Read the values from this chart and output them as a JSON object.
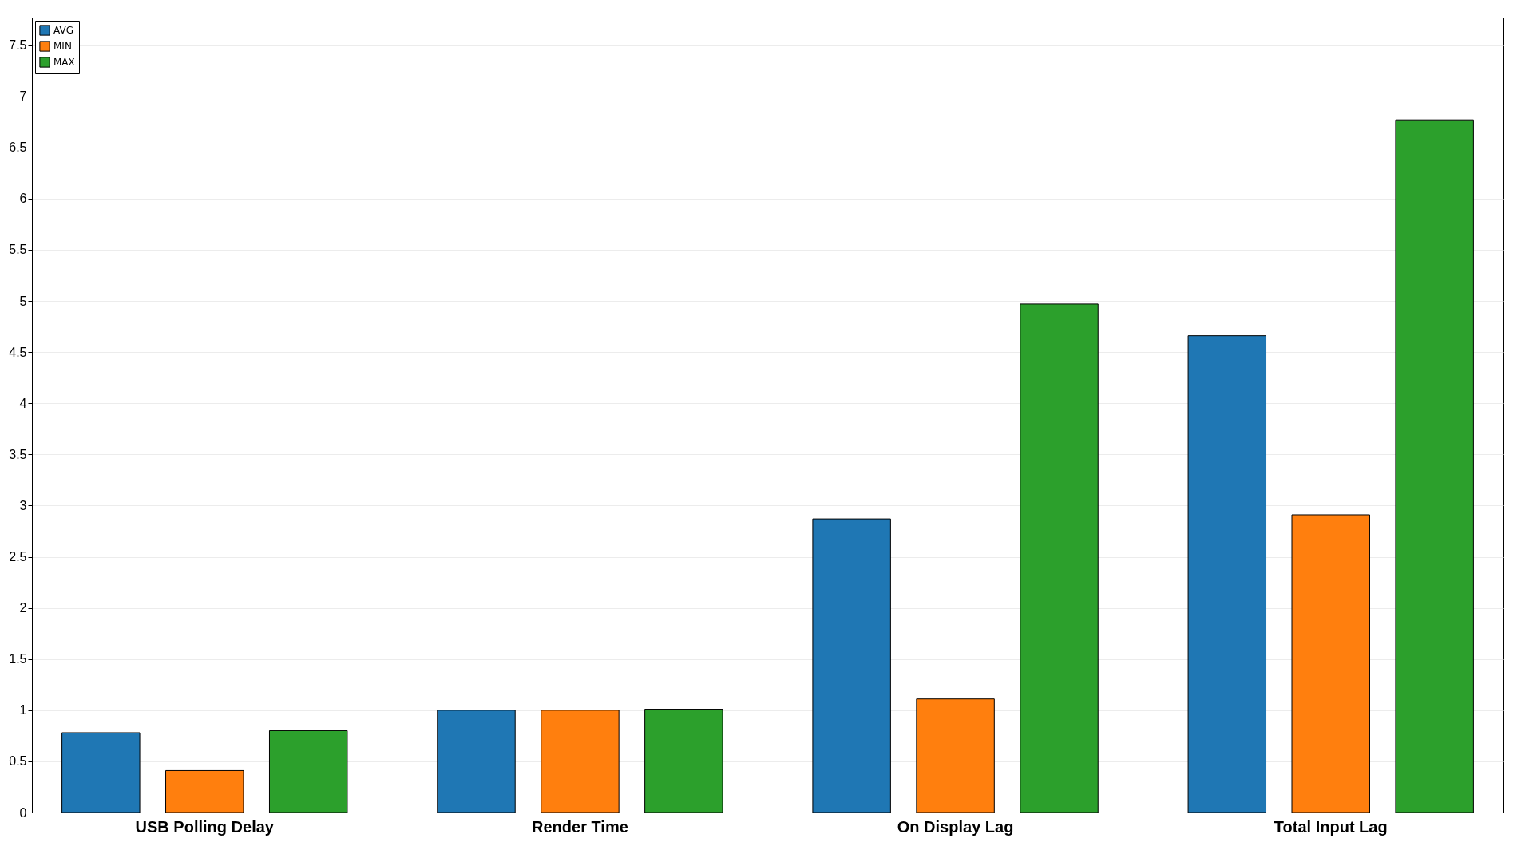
{
  "chart_data": {
    "type": "bar",
    "categories": [
      "USB Polling Delay",
      "Render Time",
      "On Display Lag",
      "Total Input Lag"
    ],
    "series": [
      {
        "name": "AVG",
        "color": "#1f77b4",
        "values": [
          0.78,
          1.0,
          2.87,
          4.66
        ]
      },
      {
        "name": "MIN",
        "color": "#ff7f0e",
        "values": [
          0.41,
          1.0,
          1.11,
          2.91
        ]
      },
      {
        "name": "MAX",
        "color": "#2ca02c",
        "values": [
          0.8,
          1.01,
          4.97,
          6.77
        ]
      }
    ],
    "ylim": [
      0,
      7.77
    ],
    "yticks": [
      0,
      0.5,
      1,
      1.5,
      2,
      2.5,
      3,
      3.5,
      4,
      4.5,
      5,
      5.5,
      6,
      6.5,
      7,
      7.5
    ],
    "grid": "y",
    "legend": "top left"
  }
}
